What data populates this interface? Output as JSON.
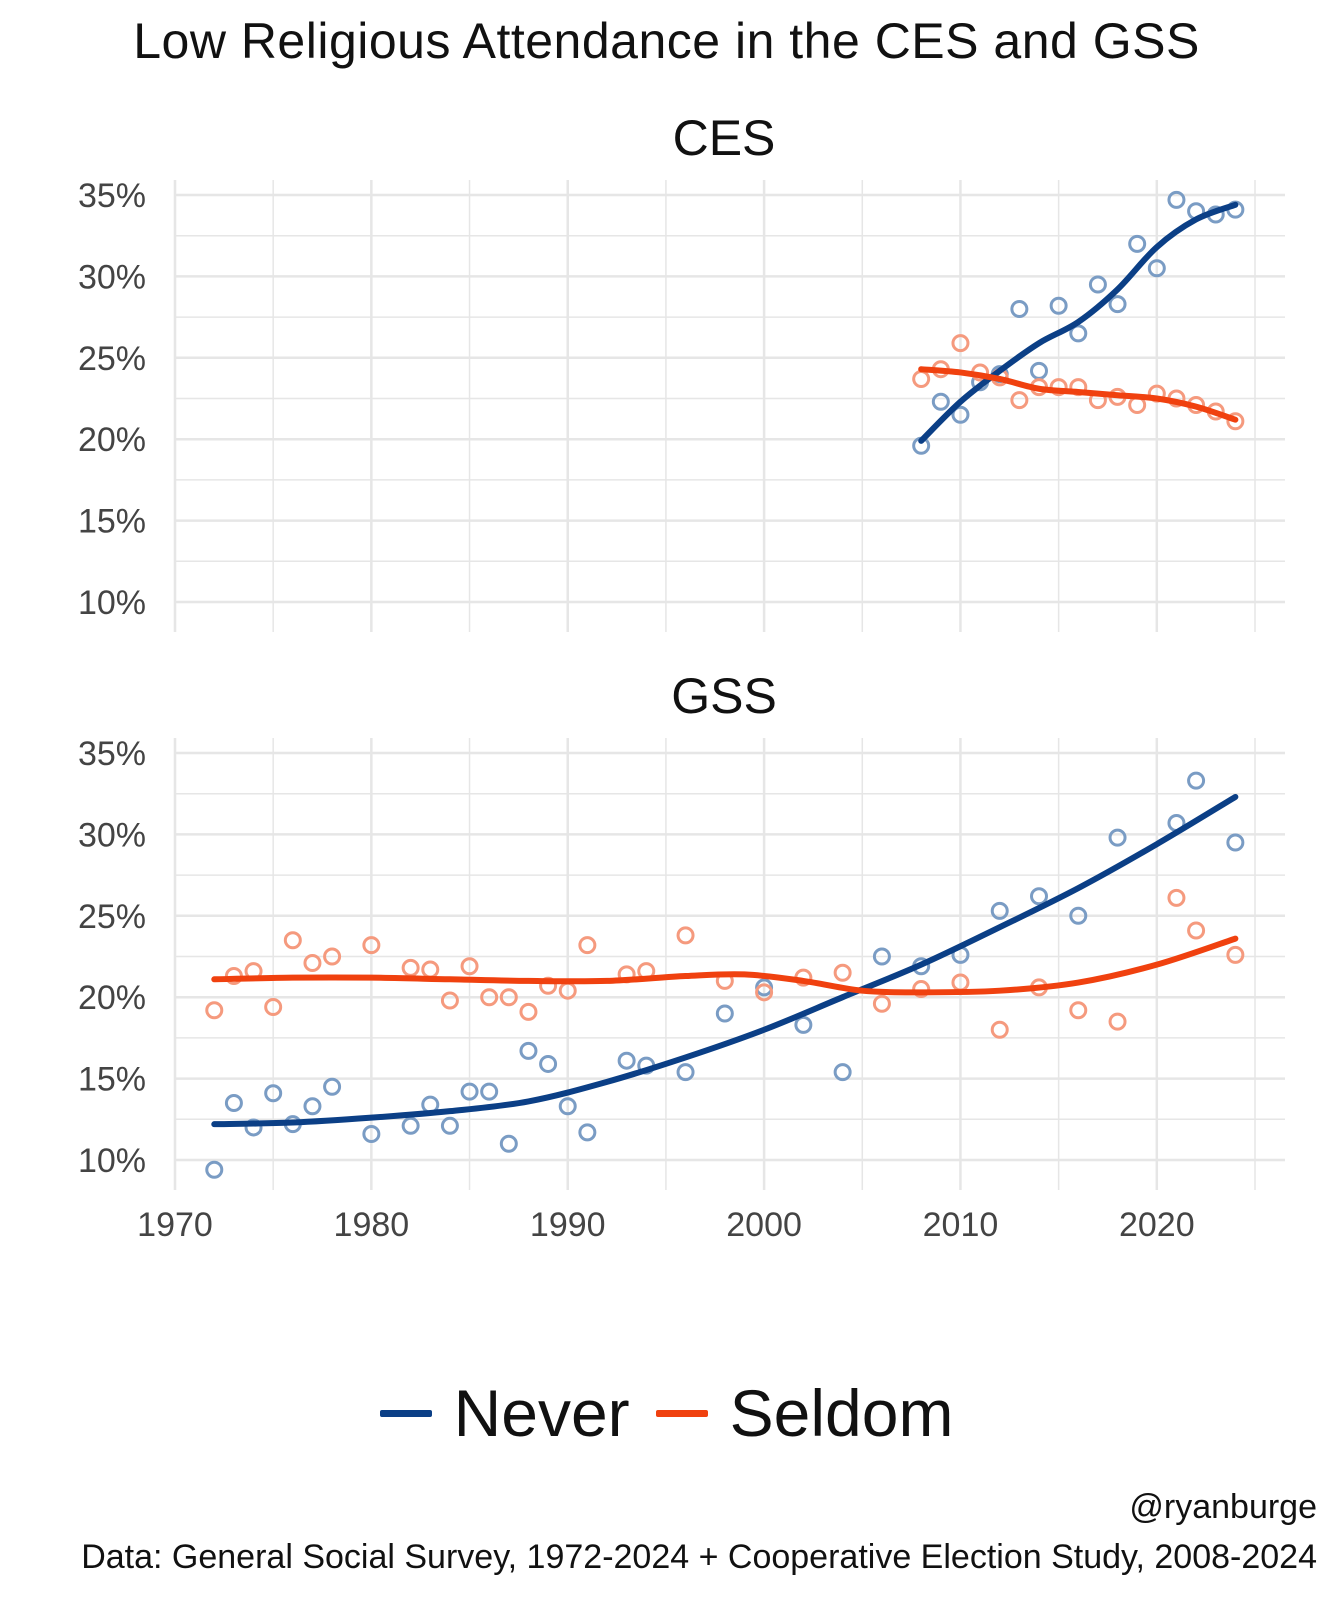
{
  "title": "Low Religious Attendance in the CES and GSS",
  "legend": [
    {
      "label": "Never",
      "color": "#0b3f86"
    },
    {
      "label": "Seldom",
      "color": "#f0410f"
    }
  ],
  "credit": "@ryanburge",
  "caption": "Data: General Social Survey, 1972-2024 + Cooperative Election Study, 2008-2024",
  "colors": {
    "never_line": "#0b3f86",
    "seldom_line": "#f0410f",
    "never_point": "#7a9cc4",
    "seldom_point": "#f59a7e",
    "grid": "#e6e6e6"
  },
  "chart_data": [
    {
      "type": "scatter",
      "title": "CES",
      "xlim": [
        1970,
        2025
      ],
      "ylim": [
        10,
        35
      ],
      "x_ticks": [
        1970,
        1980,
        1990,
        2000,
        2010,
        2020
      ],
      "y_ticks": [
        10,
        15,
        20,
        25,
        30,
        35
      ],
      "y_tick_labels": [
        "10%",
        "15%",
        "20%",
        "25%",
        "30%",
        "35%"
      ],
      "grid": true,
      "series": [
        {
          "name": "Never",
          "points": [
            [
              2008,
              19.6
            ],
            [
              2009,
              22.3
            ],
            [
              2010,
              21.5
            ],
            [
              2011,
              23.5
            ],
            [
              2012,
              24.0
            ],
            [
              2013,
              28.0
            ],
            [
              2014,
              24.2
            ],
            [
              2015,
              28.2
            ],
            [
              2016,
              26.5
            ],
            [
              2017,
              29.5
            ],
            [
              2018,
              28.3
            ],
            [
              2019,
              32.0
            ],
            [
              2020,
              30.5
            ],
            [
              2021,
              34.7
            ],
            [
              2022,
              34.0
            ],
            [
              2023,
              33.8
            ],
            [
              2024,
              34.1
            ]
          ],
          "trend": [
            [
              2008,
              19.9
            ],
            [
              2010,
              22.3
            ],
            [
              2012,
              24.2
            ],
            [
              2014,
              25.9
            ],
            [
              2016,
              27.2
            ],
            [
              2018,
              29.2
            ],
            [
              2020,
              31.8
            ],
            [
              2022,
              33.5
            ],
            [
              2024,
              34.4
            ]
          ]
        },
        {
          "name": "Seldom",
          "points": [
            [
              2008,
              23.7
            ],
            [
              2009,
              24.3
            ],
            [
              2010,
              25.9
            ],
            [
              2011,
              24.1
            ],
            [
              2012,
              23.8
            ],
            [
              2013,
              22.4
            ],
            [
              2014,
              23.2
            ],
            [
              2015,
              23.2
            ],
            [
              2016,
              23.2
            ],
            [
              2017,
              22.4
            ],
            [
              2018,
              22.6
            ],
            [
              2019,
              22.1
            ],
            [
              2020,
              22.8
            ],
            [
              2021,
              22.5
            ],
            [
              2022,
              22.1
            ],
            [
              2023,
              21.7
            ],
            [
              2024,
              21.1
            ]
          ],
          "trend": [
            [
              2008,
              24.3
            ],
            [
              2010,
              24.1
            ],
            [
              2012,
              23.7
            ],
            [
              2014,
              23.1
            ],
            [
              2016,
              22.9
            ],
            [
              2018,
              22.7
            ],
            [
              2020,
              22.5
            ],
            [
              2022,
              22.0
            ],
            [
              2024,
              21.2
            ]
          ]
        }
      ]
    },
    {
      "type": "scatter",
      "title": "GSS",
      "xlim": [
        1970,
        2025
      ],
      "ylim": [
        10,
        35
      ],
      "x_ticks": [
        1970,
        1980,
        1990,
        2000,
        2010,
        2020
      ],
      "x_tick_labels": [
        "1970",
        "1980",
        "1990",
        "2000",
        "2010",
        "2020"
      ],
      "y_ticks": [
        10,
        15,
        20,
        25,
        30,
        35
      ],
      "y_tick_labels": [
        "10%",
        "15%",
        "20%",
        "25%",
        "30%",
        "35%"
      ],
      "grid": true,
      "series": [
        {
          "name": "Never",
          "points": [
            [
              1972,
              9.4
            ],
            [
              1973,
              13.5
            ],
            [
              1974,
              12.0
            ],
            [
              1975,
              14.1
            ],
            [
              1976,
              12.2
            ],
            [
              1977,
              13.3
            ],
            [
              1978,
              14.5
            ],
            [
              1980,
              11.6
            ],
            [
              1982,
              12.1
            ],
            [
              1983,
              13.4
            ],
            [
              1984,
              12.1
            ],
            [
              1985,
              14.2
            ],
            [
              1986,
              14.2
            ],
            [
              1987,
              11.0
            ],
            [
              1988,
              16.7
            ],
            [
              1989,
              15.9
            ],
            [
              1990,
              13.3
            ],
            [
              1991,
              11.7
            ],
            [
              1993,
              16.1
            ],
            [
              1994,
              15.8
            ],
            [
              1996,
              15.4
            ],
            [
              1998,
              19.0
            ],
            [
              2000,
              20.6
            ],
            [
              2002,
              18.3
            ],
            [
              2004,
              15.4
            ],
            [
              2006,
              22.5
            ],
            [
              2008,
              21.9
            ],
            [
              2010,
              22.6
            ],
            [
              2012,
              25.3
            ],
            [
              2014,
              26.2
            ],
            [
              2016,
              25.0
            ],
            [
              2018,
              29.8
            ],
            [
              2021,
              30.7
            ],
            [
              2022,
              33.3
            ],
            [
              2024,
              29.5
            ]
          ],
          "trend": [
            [
              1972,
              12.2
            ],
            [
              1976,
              12.3
            ],
            [
              1980,
              12.6
            ],
            [
              1984,
              13.0
            ],
            [
              1988,
              13.6
            ],
            [
              1992,
              14.8
            ],
            [
              1996,
              16.3
            ],
            [
              2000,
              18.0
            ],
            [
              2004,
              20.0
            ],
            [
              2008,
              22.0
            ],
            [
              2012,
              24.3
            ],
            [
              2016,
              26.7
            ],
            [
              2020,
              29.4
            ],
            [
              2024,
              32.3
            ]
          ]
        },
        {
          "name": "Seldom",
          "points": [
            [
              1972,
              19.2
            ],
            [
              1973,
              21.3
            ],
            [
              1974,
              21.6
            ],
            [
              1975,
              19.4
            ],
            [
              1976,
              23.5
            ],
            [
              1977,
              22.1
            ],
            [
              1978,
              22.5
            ],
            [
              1980,
              23.2
            ],
            [
              1982,
              21.8
            ],
            [
              1983,
              21.7
            ],
            [
              1984,
              19.8
            ],
            [
              1985,
              21.9
            ],
            [
              1986,
              20.0
            ],
            [
              1987,
              20.0
            ],
            [
              1988,
              19.1
            ],
            [
              1989,
              20.7
            ],
            [
              1990,
              20.4
            ],
            [
              1991,
              23.2
            ],
            [
              1993,
              21.4
            ],
            [
              1994,
              21.6
            ],
            [
              1996,
              23.8
            ],
            [
              1998,
              21.0
            ],
            [
              2000,
              20.3
            ],
            [
              2002,
              21.2
            ],
            [
              2004,
              21.5
            ],
            [
              2006,
              19.6
            ],
            [
              2008,
              20.5
            ],
            [
              2010,
              20.9
            ],
            [
              2012,
              18.0
            ],
            [
              2014,
              20.6
            ],
            [
              2016,
              19.2
            ],
            [
              2018,
              18.5
            ],
            [
              2021,
              26.1
            ],
            [
              2022,
              24.1
            ],
            [
              2024,
              22.6
            ]
          ],
          "trend": [
            [
              1972,
              21.1
            ],
            [
              1976,
              21.2
            ],
            [
              1980,
              21.2
            ],
            [
              1984,
              21.1
            ],
            [
              1988,
              21.0
            ],
            [
              1992,
              21.0
            ],
            [
              1996,
              21.3
            ],
            [
              1999,
              21.4
            ],
            [
              2002,
              21.0
            ],
            [
              2005,
              20.4
            ],
            [
              2008,
              20.3
            ],
            [
              2012,
              20.4
            ],
            [
              2016,
              20.9
            ],
            [
              2020,
              22.0
            ],
            [
              2024,
              23.6
            ]
          ]
        }
      ]
    }
  ]
}
